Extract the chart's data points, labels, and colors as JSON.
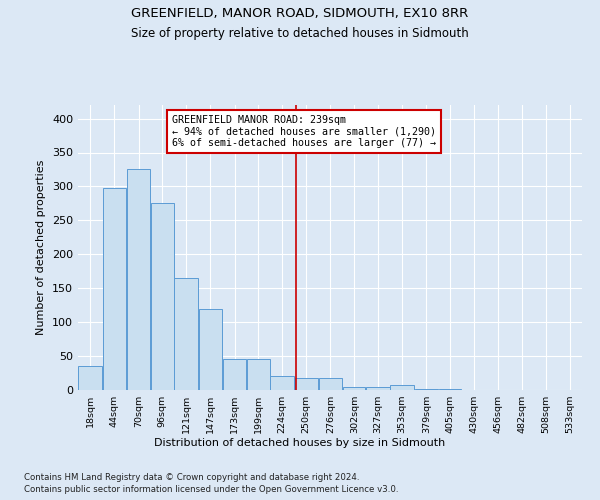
{
  "title": "GREENFIELD, MANOR ROAD, SIDMOUTH, EX10 8RR",
  "subtitle": "Size of property relative to detached houses in Sidmouth",
  "xlabel": "Distribution of detached houses by size in Sidmouth",
  "ylabel": "Number of detached properties",
  "bin_labels": [
    "18sqm",
    "44sqm",
    "70sqm",
    "96sqm",
    "121sqm",
    "147sqm",
    "173sqm",
    "199sqm",
    "224sqm",
    "250sqm",
    "276sqm",
    "302sqm",
    "327sqm",
    "353sqm",
    "379sqm",
    "405sqm",
    "430sqm",
    "456sqm",
    "482sqm",
    "508sqm",
    "533sqm"
  ],
  "bin_edges": [
    5,
    31,
    57,
    83,
    108,
    134,
    160,
    186,
    211,
    237,
    263,
    289,
    314,
    340,
    366,
    392,
    417,
    443,
    469,
    495,
    520,
    546
  ],
  "bar_values": [
    35,
    298,
    325,
    275,
    165,
    120,
    45,
    45,
    20,
    18,
    18,
    5,
    5,
    8,
    2,
    2,
    0,
    0,
    0,
    0,
    0
  ],
  "bar_color": "#c9dff0",
  "bar_edge_color": "#5b9bd5",
  "vline_x": 239,
  "vline_color": "#cc0000",
  "annotation_text": "GREENFIELD MANOR ROAD: 239sqm\n← 94% of detached houses are smaller (1,290)\n6% of semi-detached houses are larger (77) →",
  "annotation_box_edge_color": "#cc0000",
  "ylim": [
    0,
    420
  ],
  "yticks": [
    0,
    50,
    100,
    150,
    200,
    250,
    300,
    350,
    400
  ],
  "footer_line1": "Contains HM Land Registry data © Crown copyright and database right 2024.",
  "footer_line2": "Contains public sector information licensed under the Open Government Licence v3.0.",
  "background_color": "#dce8f5",
  "plot_bg_color": "#dce8f5"
}
